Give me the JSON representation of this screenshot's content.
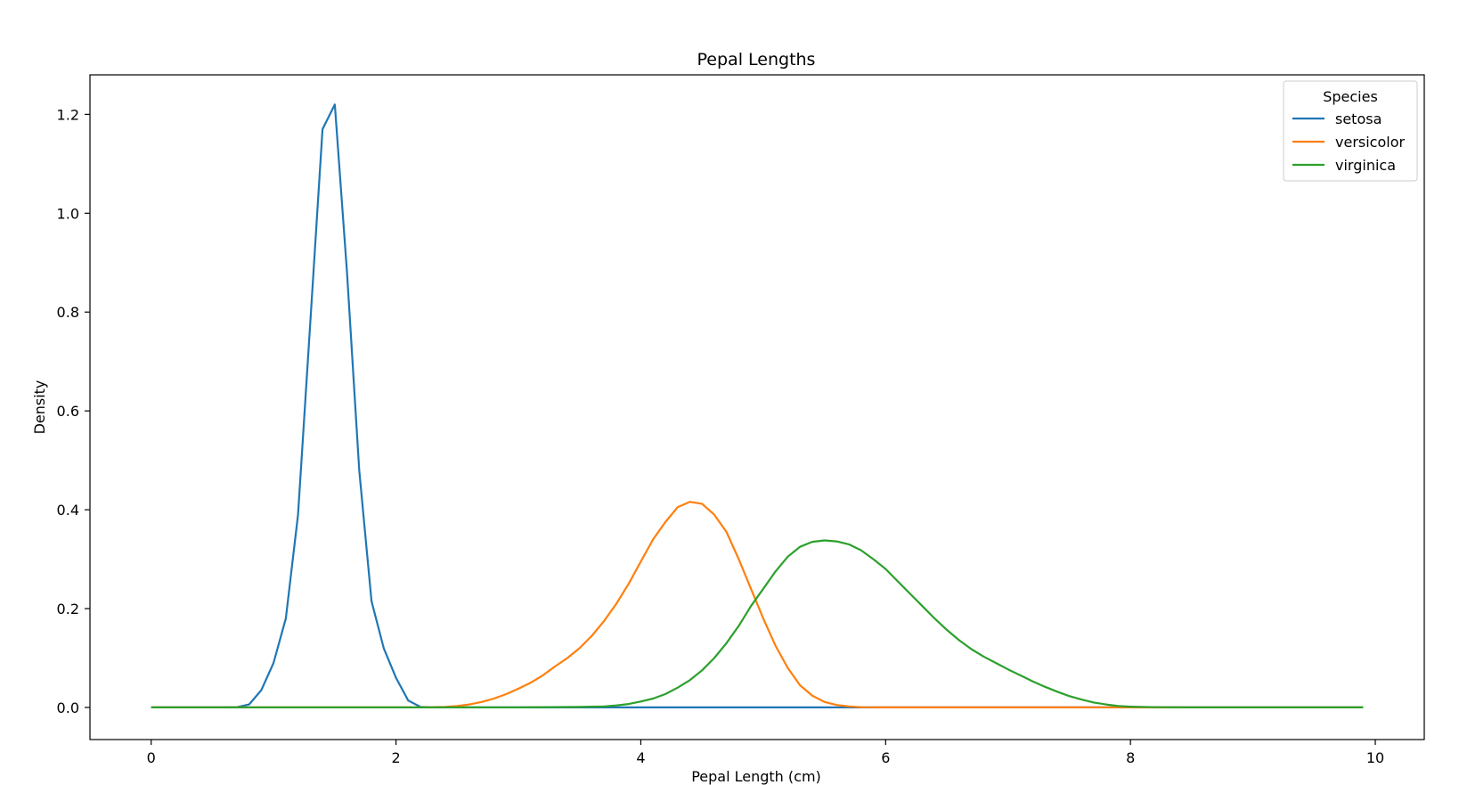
{
  "chart_data": {
    "type": "line",
    "title": "Pepal Lengths",
    "xlabel": "Pepal Length (cm)",
    "ylabel": "Density",
    "xlim": [
      -0.5,
      10.4
    ],
    "ylim": [
      -0.065,
      1.28
    ],
    "xticks": [
      0,
      2,
      4,
      6,
      8,
      10
    ],
    "xtick_labels": [
      "0",
      "2",
      "4",
      "6",
      "8",
      "10"
    ],
    "yticks": [
      0.0,
      0.2,
      0.4,
      0.6,
      0.8,
      1.0,
      1.2
    ],
    "ytick_labels": [
      "0.0",
      "0.2",
      "0.4",
      "0.6",
      "0.8",
      "1.0",
      "1.2"
    ],
    "grid": false,
    "legend": {
      "title": "Species",
      "placement": "top-right"
    },
    "series": [
      {
        "name": "setosa",
        "color": "#1f77b4",
        "points": [
          [
            0,
            0
          ],
          [
            0.5,
            0
          ],
          [
            0.7,
            0.0005
          ],
          [
            0.8,
            0.006
          ],
          [
            0.9,
            0.035
          ],
          [
            1.0,
            0.09
          ],
          [
            1.1,
            0.18
          ],
          [
            1.2,
            0.39
          ],
          [
            1.3,
            0.78
          ],
          [
            1.4,
            1.17
          ],
          [
            1.5,
            1.22
          ],
          [
            1.6,
            0.88
          ],
          [
            1.7,
            0.48
          ],
          [
            1.8,
            0.215
          ],
          [
            1.9,
            0.12
          ],
          [
            2.0,
            0.06
          ],
          [
            2.1,
            0.014
          ],
          [
            2.2,
            0.001
          ],
          [
            2.3,
            0
          ],
          [
            3,
            0
          ],
          [
            5,
            0
          ],
          [
            7,
            0
          ],
          [
            9.9,
            0
          ]
        ]
      },
      {
        "name": "versicolor",
        "color": "#ff7f0e",
        "points": [
          [
            0,
            0
          ],
          [
            2.2,
            0
          ],
          [
            2.4,
            0.001
          ],
          [
            2.5,
            0.003
          ],
          [
            2.6,
            0.006
          ],
          [
            2.7,
            0.011
          ],
          [
            2.8,
            0.018
          ],
          [
            2.9,
            0.027
          ],
          [
            3.0,
            0.038
          ],
          [
            3.1,
            0.05
          ],
          [
            3.2,
            0.065
          ],
          [
            3.3,
            0.083
          ],
          [
            3.4,
            0.1
          ],
          [
            3.5,
            0.12
          ],
          [
            3.6,
            0.145
          ],
          [
            3.7,
            0.175
          ],
          [
            3.8,
            0.21
          ],
          [
            3.9,
            0.25
          ],
          [
            4.0,
            0.295
          ],
          [
            4.1,
            0.34
          ],
          [
            4.2,
            0.375
          ],
          [
            4.3,
            0.405
          ],
          [
            4.4,
            0.416
          ],
          [
            4.5,
            0.412
          ],
          [
            4.6,
            0.39
          ],
          [
            4.7,
            0.355
          ],
          [
            4.8,
            0.3
          ],
          [
            4.9,
            0.24
          ],
          [
            5.0,
            0.18
          ],
          [
            5.1,
            0.125
          ],
          [
            5.2,
            0.08
          ],
          [
            5.3,
            0.045
          ],
          [
            5.4,
            0.024
          ],
          [
            5.5,
            0.011
          ],
          [
            5.6,
            0.005
          ],
          [
            5.7,
            0.002
          ],
          [
            5.8,
            0.0005
          ],
          [
            6,
            0
          ],
          [
            8,
            0
          ],
          [
            9.9,
            0
          ]
        ]
      },
      {
        "name": "virginica",
        "color": "#2ca02c",
        "points": [
          [
            0,
            0
          ],
          [
            3,
            0
          ],
          [
            3.5,
            0.001
          ],
          [
            3.7,
            0.002
          ],
          [
            3.8,
            0.004
          ],
          [
            3.9,
            0.007
          ],
          [
            4.0,
            0.012
          ],
          [
            4.1,
            0.018
          ],
          [
            4.2,
            0.027
          ],
          [
            4.3,
            0.04
          ],
          [
            4.4,
            0.055
          ],
          [
            4.5,
            0.075
          ],
          [
            4.6,
            0.1
          ],
          [
            4.7,
            0.13
          ],
          [
            4.8,
            0.165
          ],
          [
            4.9,
            0.205
          ],
          [
            5.0,
            0.24
          ],
          [
            5.1,
            0.275
          ],
          [
            5.2,
            0.305
          ],
          [
            5.3,
            0.325
          ],
          [
            5.4,
            0.335
          ],
          [
            5.5,
            0.338
          ],
          [
            5.6,
            0.336
          ],
          [
            5.7,
            0.33
          ],
          [
            5.8,
            0.318
          ],
          [
            5.9,
            0.3
          ],
          [
            6.0,
            0.28
          ],
          [
            6.1,
            0.255
          ],
          [
            6.2,
            0.23
          ],
          [
            6.3,
            0.205
          ],
          [
            6.4,
            0.18
          ],
          [
            6.5,
            0.157
          ],
          [
            6.6,
            0.136
          ],
          [
            6.7,
            0.118
          ],
          [
            6.8,
            0.103
          ],
          [
            6.9,
            0.09
          ],
          [
            7.0,
            0.077
          ],
          [
            7.1,
            0.065
          ],
          [
            7.2,
            0.053
          ],
          [
            7.3,
            0.042
          ],
          [
            7.4,
            0.032
          ],
          [
            7.5,
            0.023
          ],
          [
            7.6,
            0.016
          ],
          [
            7.7,
            0.01
          ],
          [
            7.8,
            0.006
          ],
          [
            7.9,
            0.003
          ],
          [
            8.0,
            0.0015
          ],
          [
            8.2,
            0.0005
          ],
          [
            8.5,
            0
          ],
          [
            9.9,
            0
          ]
        ]
      }
    ]
  }
}
